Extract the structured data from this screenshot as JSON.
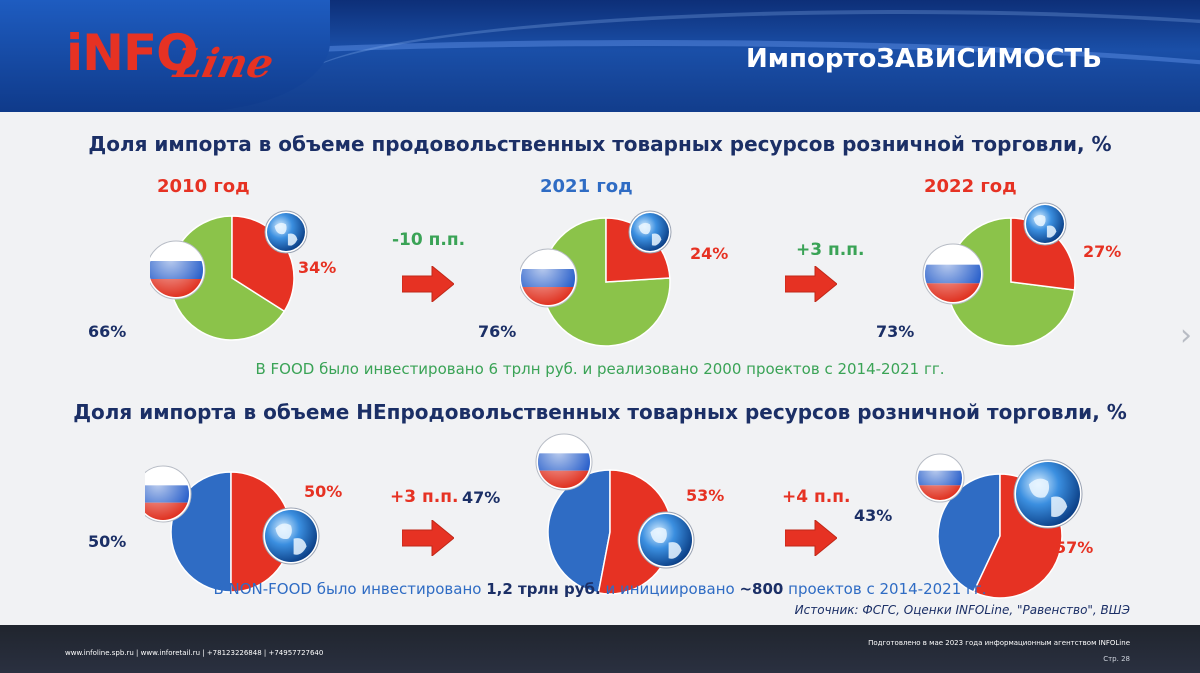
{
  "header": {
    "logo_prefix": "iNFO",
    "logo_script": "Line",
    "title": "ИмпортоЗАВИСИМОСТЬ"
  },
  "colors": {
    "russia": "#5a9a3a",
    "russia_pie_food": "#8bc34a",
    "import": "#e63223",
    "russia_nonfood": "#2f6cc4",
    "navy": "#1b2f66",
    "green_text": "#3aa356",
    "blue_text": "#2f6cc4"
  },
  "food": {
    "title": "Доля импорта в объеме продовольственных товарных ресурсов розничной торговли, %",
    "years": [
      {
        "label": "2010 год",
        "import_label": "34%",
        "domestic_label": "66%"
      },
      {
        "label": "2021 год",
        "import_label": "24%",
        "domestic_label": "76%"
      },
      {
        "label": "2022 год",
        "import_label": "27%",
        "domestic_label": "73%"
      }
    ],
    "changes": [
      "-10 п.п.",
      "+3 п.п."
    ],
    "note": "В FOOD было инвестировано 6 трлн руб. и реализовано 2000 проектов с 2014-2021 гг."
  },
  "nonfood": {
    "title": "Доля импорта в объеме НЕпродовольственных товарных ресурсов розничной торговли, %",
    "years": [
      {
        "import_label": "50%",
        "domestic_label": "50%"
      },
      {
        "import_label": "53%",
        "domestic_label": "47%"
      },
      {
        "import_label": "57%",
        "domestic_label": "43%"
      }
    ],
    "changes": [
      "+3 п.п.",
      "+4 п.п."
    ],
    "note": {
      "part1": "В NON-FOOD было инвестировано ",
      "bold1": "1,2 трлн руб.",
      "part2": " и инициировано ",
      "bold2": "~800",
      "part3": " проектов с 2014-2021 гг."
    }
  },
  "source": "Источник: ФСГС, Оценки INFOLine, \"Равенство\", ВШЭ",
  "footer": {
    "contacts": "www.infoline.spb.ru | www.inforetail.ru | +78123226848 | +74957727640",
    "prepared": "Подготовлено в мае 2023 года информационным агентством INFOLine",
    "page": "Стр. 28"
  },
  "chart_data": [
    {
      "type": "pie",
      "title": "Доля импорта в объеме продовольственных товарных ресурсов розничной торговли, %",
      "categories": [
        "2010 год",
        "2021 год",
        "2022 год"
      ],
      "series": [
        {
          "name": "",
          "values": [
            34,
            24,
            27
          ]
        },
        {
          "name": "",
          "values": [
            66,
            76,
            73
          ]
        }
      ],
      "annotations": [
        "-10 п.п.",
        "+3 п.п."
      ]
    },
    {
      "type": "pie",
      "title": "Доля импорта в объеме НЕпродовольственных товарных ресурсов розничной торговли, %",
      "categories": [
        "2010 год",
        "2021 год",
        "2022 год"
      ],
      "series": [
        {
          "name": "",
          "values": [
            50,
            53,
            57
          ]
        },
        {
          "name": "",
          "values": [
            50,
            47,
            43
          ]
        }
      ],
      "annotations": [
        "+3 п.п.",
        "+4 п.п."
      ]
    }
  ]
}
